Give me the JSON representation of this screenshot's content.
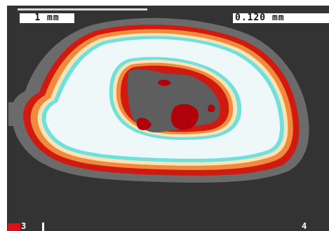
{
  "image": {
    "scale_bar_label": "1 mm",
    "resolution_label": "0.120 mm",
    "corner_left_label": "3",
    "corner_right_label": "4"
  },
  "colors": {
    "background": "#333333",
    "outer_gray": "#6b6b6b",
    "red": "#d11a0f",
    "orange": "#f08a3c",
    "cream": "#fbe3b8",
    "cyan": "#6fe0dc",
    "white_core": "#eef8f8",
    "inner_gray": "#5e5e5e",
    "dark_red": "#b0000a",
    "swatch": "#e0101a"
  }
}
